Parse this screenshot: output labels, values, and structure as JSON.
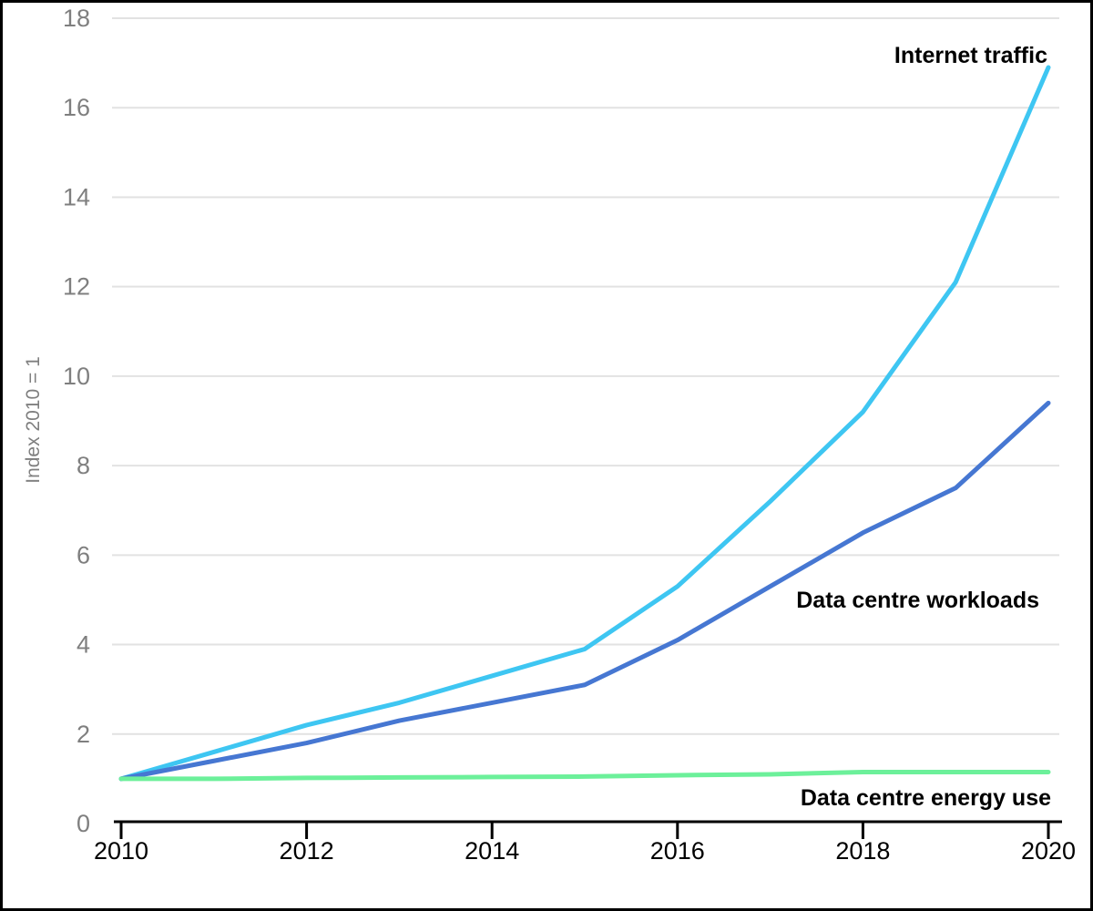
{
  "chart_data": {
    "type": "line",
    "title": "",
    "xlabel": "",
    "ylabel": "Index 2010 = 1",
    "x": [
      2010,
      2011,
      2012,
      2013,
      2014,
      2015,
      2016,
      2017,
      2018,
      2019,
      2020
    ],
    "x_tick_labels": [
      "2010",
      "2012",
      "2014",
      "2016",
      "2018",
      "2020"
    ],
    "x_tick_years": [
      2010,
      2012,
      2014,
      2016,
      2018,
      2020
    ],
    "y_ticks": [
      0,
      2,
      4,
      6,
      8,
      10,
      12,
      14,
      16,
      18
    ],
    "xlim": [
      2010,
      2020
    ],
    "ylim": [
      0,
      18
    ],
    "grid": "horizontal",
    "legend_position": "inline-annotations",
    "series": [
      {
        "name": "Internet traffic",
        "color": "#3EC6F2",
        "values": [
          1.0,
          1.6,
          2.2,
          2.7,
          3.3,
          3.9,
          5.3,
          7.2,
          9.2,
          12.1,
          16.9
        ]
      },
      {
        "name": "Data centre workloads",
        "color": "#4677D2",
        "values": [
          1.0,
          1.4,
          1.8,
          2.3,
          2.7,
          3.1,
          4.1,
          5.3,
          6.5,
          7.5,
          9.4
        ]
      },
      {
        "name": "Data centre energy use",
        "color": "#6CF09A",
        "values": [
          1.0,
          1.0,
          1.02,
          1.03,
          1.04,
          1.05,
          1.08,
          1.1,
          1.15,
          1.15,
          1.15
        ]
      }
    ]
  },
  "colors": {
    "gridline": "#E2E2E2",
    "axis_line": "#000000",
    "y_label_text": "#7f7f7f",
    "x_label_text": "#000000",
    "background": "#ffffff",
    "border": "#000000"
  }
}
